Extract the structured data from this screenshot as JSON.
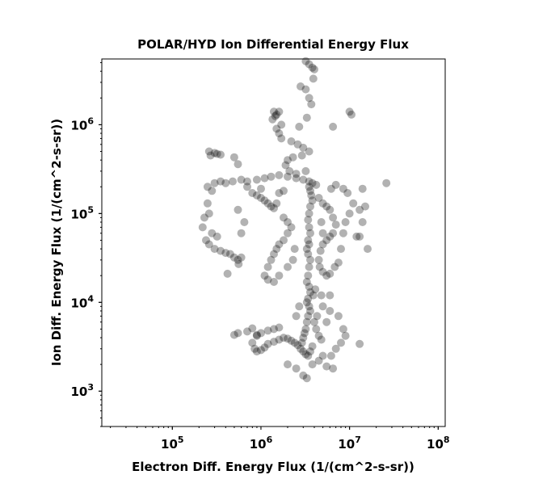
{
  "chart_data": {
    "type": "scatter",
    "title": "POLAR/HYD  Ion Differential Energy Flux",
    "xlabel": "Electron Diff. Energy Flux (1/(cm^2-s-sr))",
    "ylabel": "Ion Diff. Energy Flux (1/(cm^2-s-sr))",
    "xscale": "log",
    "yscale": "log",
    "xlim": [
      16000,
      120000000
    ],
    "ylim": [
      400,
      5500000
    ],
    "xticks": [
      {
        "value": 100000,
        "base": "10",
        "exp": "5"
      },
      {
        "value": 1000000,
        "base": "10",
        "exp": "6"
      },
      {
        "value": 10000000,
        "base": "10",
        "exp": "7"
      },
      {
        "value": 100000000,
        "base": "10",
        "exp": "8"
      }
    ],
    "yticks": [
      {
        "value": 1000,
        "base": "10",
        "exp": "3"
      },
      {
        "value": 10000,
        "base": "10",
        "exp": "4"
      },
      {
        "value": 100000,
        "base": "10",
        "exp": "5"
      },
      {
        "value": 1000000,
        "base": "10",
        "exp": "6"
      }
    ],
    "marker_color": "#000000",
    "marker_opacity": 0.3,
    "grid": false,
    "series": [
      {
        "points": [
          [
            280000,
            180000
          ],
          [
            250000,
            200000
          ],
          [
            300000,
            220000
          ],
          [
            350000,
            230000
          ],
          [
            400000,
            220000
          ],
          [
            480000,
            230000
          ],
          [
            600000,
            240000
          ],
          [
            700000,
            230000
          ],
          [
            900000,
            240000
          ],
          [
            1100000,
            250000
          ],
          [
            1300000,
            260000
          ],
          [
            1600000,
            270000
          ],
          [
            2000000,
            260000
          ],
          [
            2500000,
            250000
          ],
          [
            3000000,
            240000
          ],
          [
            3500000,
            230000
          ],
          [
            3800000,
            220000
          ],
          [
            4200000,
            210000
          ],
          [
            270000,
            450000
          ],
          [
            320000,
            470000
          ],
          [
            300000,
            480000
          ],
          [
            350000,
            460000
          ],
          [
            260000,
            500000
          ],
          [
            500000,
            430000
          ],
          [
            550000,
            360000
          ],
          [
            800000,
            170000
          ],
          [
            900000,
            160000
          ],
          [
            1000000,
            150000
          ],
          [
            1100000,
            140000
          ],
          [
            1200000,
            130000
          ],
          [
            1300000,
            120000
          ],
          [
            1400000,
            115000
          ],
          [
            1500000,
            130000
          ],
          [
            1600000,
            170000
          ],
          [
            1800000,
            180000
          ],
          [
            1000000,
            190000
          ],
          [
            700000,
            200000
          ],
          [
            250000,
            130000
          ],
          [
            230000,
            90000
          ],
          [
            220000,
            70000
          ],
          [
            240000,
            50000
          ],
          [
            260000,
            45000
          ],
          [
            300000,
            40000
          ],
          [
            350000,
            38000
          ],
          [
            400000,
            36000
          ],
          [
            450000,
            35000
          ],
          [
            500000,
            32000
          ],
          [
            550000,
            30000
          ],
          [
            600000,
            32000
          ],
          [
            280000,
            60000
          ],
          [
            320000,
            55000
          ],
          [
            260000,
            100000
          ],
          [
            600000,
            60000
          ],
          [
            650000,
            80000
          ],
          [
            550000,
            110000
          ],
          [
            420000,
            21000
          ],
          [
            560000,
            27000
          ],
          [
            1400000,
            1400000
          ],
          [
            1500000,
            1300000
          ],
          [
            1600000,
            1400000
          ],
          [
            1450000,
            1250000
          ],
          [
            1350000,
            1150000
          ],
          [
            1700000,
            1000000
          ],
          [
            1500000,
            900000
          ],
          [
            1600000,
            800000
          ],
          [
            1700000,
            700000
          ],
          [
            2200000,
            650000
          ],
          [
            2600000,
            600000
          ],
          [
            3000000,
            550000
          ],
          [
            3500000,
            500000
          ],
          [
            2900000,
            450000
          ],
          [
            2300000,
            430000
          ],
          [
            2000000,
            400000
          ],
          [
            1900000,
            350000
          ],
          [
            2100000,
            300000
          ],
          [
            2500000,
            280000
          ],
          [
            3200000,
            300000
          ],
          [
            3200000,
            5200000
          ],
          [
            3500000,
            4800000
          ],
          [
            3800000,
            4400000
          ],
          [
            4000000,
            4200000
          ],
          [
            3900000,
            3300000
          ],
          [
            2800000,
            2700000
          ],
          [
            3200000,
            2500000
          ],
          [
            3500000,
            2000000
          ],
          [
            3700000,
            1700000
          ],
          [
            3300000,
            1200000
          ],
          [
            2700000,
            950000
          ],
          [
            3500000,
            200000
          ],
          [
            3600000,
            180000
          ],
          [
            3700000,
            160000
          ],
          [
            3800000,
            140000
          ],
          [
            3600000,
            120000
          ],
          [
            3500000,
            100000
          ],
          [
            3400000,
            85000
          ],
          [
            3500000,
            70000
          ],
          [
            3600000,
            60000
          ],
          [
            3400000,
            50000
          ],
          [
            3500000,
            45000
          ],
          [
            3300000,
            40000
          ],
          [
            3400000,
            35000
          ],
          [
            3600000,
            30000
          ],
          [
            3500000,
            25000
          ],
          [
            3400000,
            20000
          ],
          [
            3300000,
            17000
          ],
          [
            3500000,
            15000
          ],
          [
            3600000,
            13000
          ],
          [
            3400000,
            11000
          ],
          [
            3300000,
            10000
          ],
          [
            3500000,
            9000
          ],
          [
            3600000,
            8000
          ],
          [
            3400000,
            7000
          ],
          [
            3300000,
            6000
          ],
          [
            3200000,
            5000
          ],
          [
            3100000,
            4500
          ],
          [
            3000000,
            4000
          ],
          [
            2900000,
            3500
          ],
          [
            2800000,
            3000
          ],
          [
            3000000,
            2800
          ],
          [
            3200000,
            2600
          ],
          [
            3400000,
            2500
          ],
          [
            3600000,
            2800
          ],
          [
            3800000,
            3200
          ],
          [
            2600000,
            3300
          ],
          [
            2400000,
            3500
          ],
          [
            2200000,
            3700
          ],
          [
            2000000,
            3900
          ],
          [
            1800000,
            4000
          ],
          [
            1600000,
            3800
          ],
          [
            1400000,
            3600
          ],
          [
            1200000,
            3400
          ],
          [
            1100000,
            3100
          ],
          [
            1000000,
            2900
          ],
          [
            900000,
            2800
          ],
          [
            850000,
            3000
          ],
          [
            800000,
            3500
          ],
          [
            900000,
            4200
          ],
          [
            1000000,
            4500
          ],
          [
            1200000,
            4800
          ],
          [
            1400000,
            5000
          ],
          [
            1600000,
            5200
          ],
          [
            2500000,
            7000
          ],
          [
            2700000,
            9000
          ],
          [
            4000000,
            6000
          ],
          [
            4200000,
            5000
          ],
          [
            4500000,
            4200
          ],
          [
            4800000,
            3800
          ],
          [
            4300000,
            7000
          ],
          [
            3900000,
            12000
          ],
          [
            4100000,
            14000
          ],
          [
            2000000,
            2000
          ],
          [
            2500000,
            1800
          ],
          [
            3000000,
            1500
          ],
          [
            3300000,
            1400
          ],
          [
            3800000,
            2000
          ],
          [
            4500000,
            2200
          ],
          [
            5000000,
            2500
          ],
          [
            5500000,
            1900
          ],
          [
            6500000,
            1800
          ],
          [
            6200000,
            2500
          ],
          [
            7000000,
            3000
          ],
          [
            8000000,
            3500
          ],
          [
            9000000,
            4200
          ],
          [
            8500000,
            5000
          ],
          [
            7500000,
            7000
          ],
          [
            6000000,
            8000
          ],
          [
            5500000,
            6000
          ],
          [
            5000000,
            9000
          ],
          [
            4800000,
            12000
          ],
          [
            6000000,
            12000
          ],
          [
            500000,
            4300
          ],
          [
            550000,
            4500
          ],
          [
            700000,
            4700
          ],
          [
            800000,
            5100
          ],
          [
            900000,
            4300
          ],
          [
            1800000,
            90000
          ],
          [
            2000000,
            80000
          ],
          [
            2200000,
            70000
          ],
          [
            2000000,
            60000
          ],
          [
            1800000,
            50000
          ],
          [
            1600000,
            45000
          ],
          [
            1500000,
            40000
          ],
          [
            1400000,
            35000
          ],
          [
            1300000,
            30000
          ],
          [
            1200000,
            25000
          ],
          [
            1100000,
            20000
          ],
          [
            1200000,
            18000
          ],
          [
            1400000,
            17000
          ],
          [
            1600000,
            20000
          ],
          [
            2000000,
            25000
          ],
          [
            2300000,
            30000
          ],
          [
            2400000,
            40000
          ],
          [
            4500000,
            150000
          ],
          [
            5000000,
            130000
          ],
          [
            5500000,
            120000
          ],
          [
            6000000,
            110000
          ],
          [
            6500000,
            90000
          ],
          [
            7000000,
            75000
          ],
          [
            6500000,
            60000
          ],
          [
            6000000,
            55000
          ],
          [
            5500000,
            50000
          ],
          [
            5000000,
            45000
          ],
          [
            4700000,
            38000
          ],
          [
            4500000,
            30000
          ],
          [
            4600000,
            25000
          ],
          [
            5000000,
            22000
          ],
          [
            5500000,
            20000
          ],
          [
            6000000,
            21000
          ],
          [
            6800000,
            25000
          ],
          [
            7500000,
            28000
          ],
          [
            8000000,
            40000
          ],
          [
            8500000,
            60000
          ],
          [
            9000000,
            80000
          ],
          [
            10000000,
            100000
          ],
          [
            11000000,
            130000
          ],
          [
            9500000,
            170000
          ],
          [
            8500000,
            190000
          ],
          [
            7000000,
            210000
          ],
          [
            6200000,
            190000
          ],
          [
            5000000,
            60000
          ],
          [
            4800000,
            80000
          ],
          [
            14000000,
            190000
          ],
          [
            15000000,
            120000
          ],
          [
            13000000,
            110000
          ],
          [
            14000000,
            80000
          ],
          [
            13000000,
            55000
          ],
          [
            16000000,
            40000
          ],
          [
            26000000,
            220000
          ],
          [
            10000000,
            1400000
          ],
          [
            10500000,
            1300000
          ],
          [
            6500000,
            950000
          ],
          [
            13000000,
            3400
          ],
          [
            12000000,
            55000
          ]
        ]
      }
    ]
  }
}
